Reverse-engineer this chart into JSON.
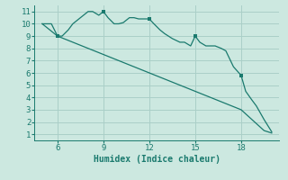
{
  "background_color": "#cce8e0",
  "plot_bg_color": "#cce8e0",
  "line_color": "#1a7a6e",
  "grid_color": "#aacfc8",
  "xlabel": "Humidex (Indice chaleur)",
  "xlabel_fontsize": 7,
  "tick_fontsize": 6.5,
  "xlim": [
    4.5,
    20.5
  ],
  "ylim": [
    0.5,
    11.5
  ],
  "xticks": [
    6,
    9,
    12,
    15,
    18
  ],
  "yticks": [
    1,
    2,
    3,
    4,
    5,
    6,
    7,
    8,
    9,
    10,
    11
  ],
  "line1_x": [
    5.0,
    5.3,
    5.6,
    6.0,
    6.3,
    6.7,
    7.0,
    7.3,
    7.7,
    8.0,
    8.3,
    8.7,
    9.0,
    9.3,
    9.7,
    10.0,
    10.3,
    10.5,
    10.7,
    11.0,
    11.3,
    11.7,
    12.0,
    12.3,
    12.7,
    13.0,
    13.5,
    14.0,
    14.3,
    14.7,
    15.0,
    15.3,
    15.7,
    16.0,
    16.3,
    16.7,
    17.0,
    17.5,
    18.0,
    18.3,
    18.7,
    19.0,
    19.5,
    20.0
  ],
  "line1_y": [
    10.0,
    10.0,
    10.0,
    9.0,
    9.0,
    9.5,
    10.0,
    10.3,
    10.7,
    11.0,
    11.0,
    10.7,
    11.0,
    10.5,
    10.0,
    10.0,
    10.1,
    10.3,
    10.5,
    10.5,
    10.4,
    10.4,
    10.4,
    10.0,
    9.5,
    9.2,
    8.8,
    8.5,
    8.5,
    8.2,
    9.0,
    8.5,
    8.2,
    8.2,
    8.2,
    8.0,
    7.8,
    6.5,
    5.8,
    4.5,
    3.8,
    3.3,
    2.2,
    1.2
  ],
  "line2_x": [
    5.0,
    6.0,
    8.0,
    9.0,
    11.0,
    12.0,
    14.0,
    15.0,
    17.0,
    18.0,
    19.5,
    20.0
  ],
  "line2_y": [
    10.0,
    9.0,
    8.0,
    7.5,
    6.5,
    6.0,
    5.0,
    4.5,
    3.5,
    3.0,
    1.3,
    1.1
  ],
  "marker_points_x": [
    6.0,
    9.0,
    12.0,
    15.0,
    18.0
  ],
  "marker_points_y": [
    9.0,
    11.0,
    10.4,
    9.0,
    5.8
  ]
}
